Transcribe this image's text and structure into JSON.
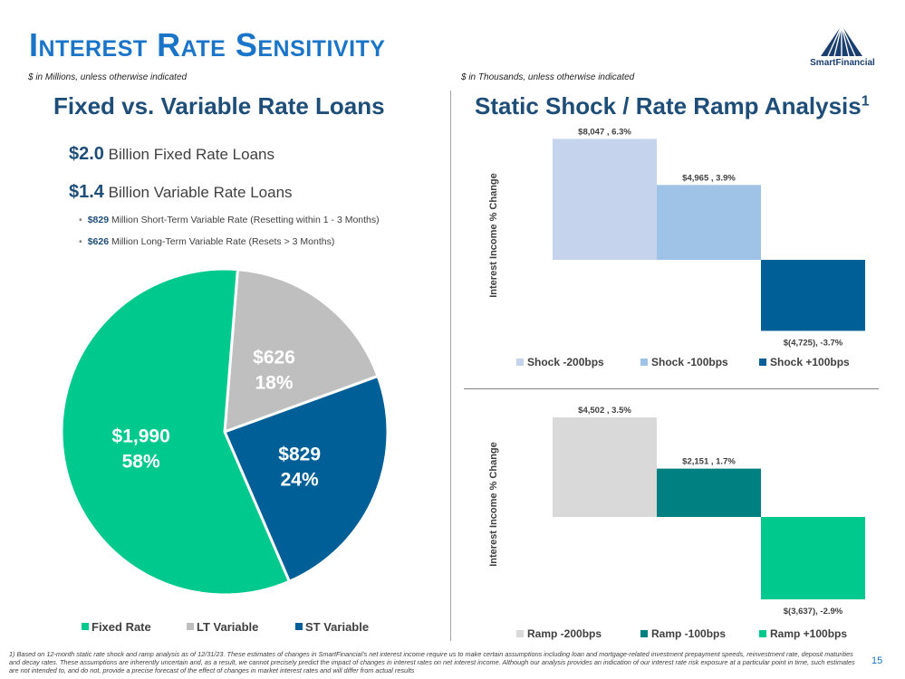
{
  "page": {
    "title": "Interest Rate Sensitivity",
    "logo_name": "SmartFinancial",
    "page_number": "15",
    "footnote": "1)  Based on 12-month static rate shock and ramp analysis as of 12/31/23. These estimates of changes in SmartFinancial's net interest income require us to make certain assumptions including loan and mortgage-related investment prepayment speeds, reinvestment rate, deposit maturities and decay rates. These assumptions are inherently uncertain and, as a result, we cannot precisely predict the impact of changes in interest rates on net interest income. Although our analysis provides an indication of our interest rate risk exposure at a particular point in time, such estimates are not intended to, and do not, provide a precise forecast of the effect of changes in market interest rates and will differ from actual results"
  },
  "left": {
    "note": "$ in Millions, unless otherwise indicated",
    "heading": "Fixed vs. Variable Rate Loans",
    "fixed_amount": "$2.0",
    "fixed_text": " Billion Fixed Rate Loans",
    "variable_amount": "$1.4",
    "variable_text": " Billion Variable Rate Loans",
    "bullets": [
      {
        "amount": "$829",
        "text": " Million Short-Term Variable Rate (Resetting within 1 - 3 Months)"
      },
      {
        "amount": "$626",
        "text": " Million Long-Term Variable Rate (Resets > 3 Months)"
      }
    ]
  },
  "right": {
    "note": "$ in Thousands, unless otherwise indicated",
    "heading": "Static Shock / Rate Ramp Analysis",
    "heading_sup": "1"
  },
  "chart_data": [
    {
      "type": "pie",
      "slices": [
        {
          "name": "Fixed Rate",
          "value": 1990,
          "label": "$1,990",
          "pct_label": "58%",
          "color": "#00c98d"
        },
        {
          "name": "LT Variable",
          "value": 626,
          "label": "$626",
          "pct_label": "18%",
          "color": "#bfbfbf"
        },
        {
          "name": "ST Variable",
          "value": 829,
          "label": "$829",
          "pct_label": "24%",
          "color": "#005f96"
        }
      ],
      "legend_position": "bottom"
    },
    {
      "type": "bar",
      "ylabel": "Interest Income % Change",
      "categories": [
        "Shock -200bps",
        "Shock -100bps",
        "Shock +100bps"
      ],
      "values": [
        6.3,
        3.9,
        -3.7
      ],
      "data_labels": [
        "$8,047 , 6.3%",
        "$4,965 , 3.9%",
        "$(4,725), -3.7%"
      ],
      "colors": [
        "#c5d3ec",
        "#9ec3e6",
        "#005f96"
      ],
      "legend_position": "bottom"
    },
    {
      "type": "bar",
      "ylabel": "Interest Income % Change",
      "categories": [
        "Ramp -200bps",
        "Ramp -100bps",
        "Ramp +100bps"
      ],
      "values": [
        3.5,
        1.7,
        -2.9
      ],
      "data_labels": [
        "$4,502 , 3.5%",
        "$2,151 , 1.7%",
        "$(3,637), -2.9%"
      ],
      "colors": [
        "#d9d9d9",
        "#008080",
        "#00c98d"
      ],
      "legend_position": "bottom"
    }
  ]
}
